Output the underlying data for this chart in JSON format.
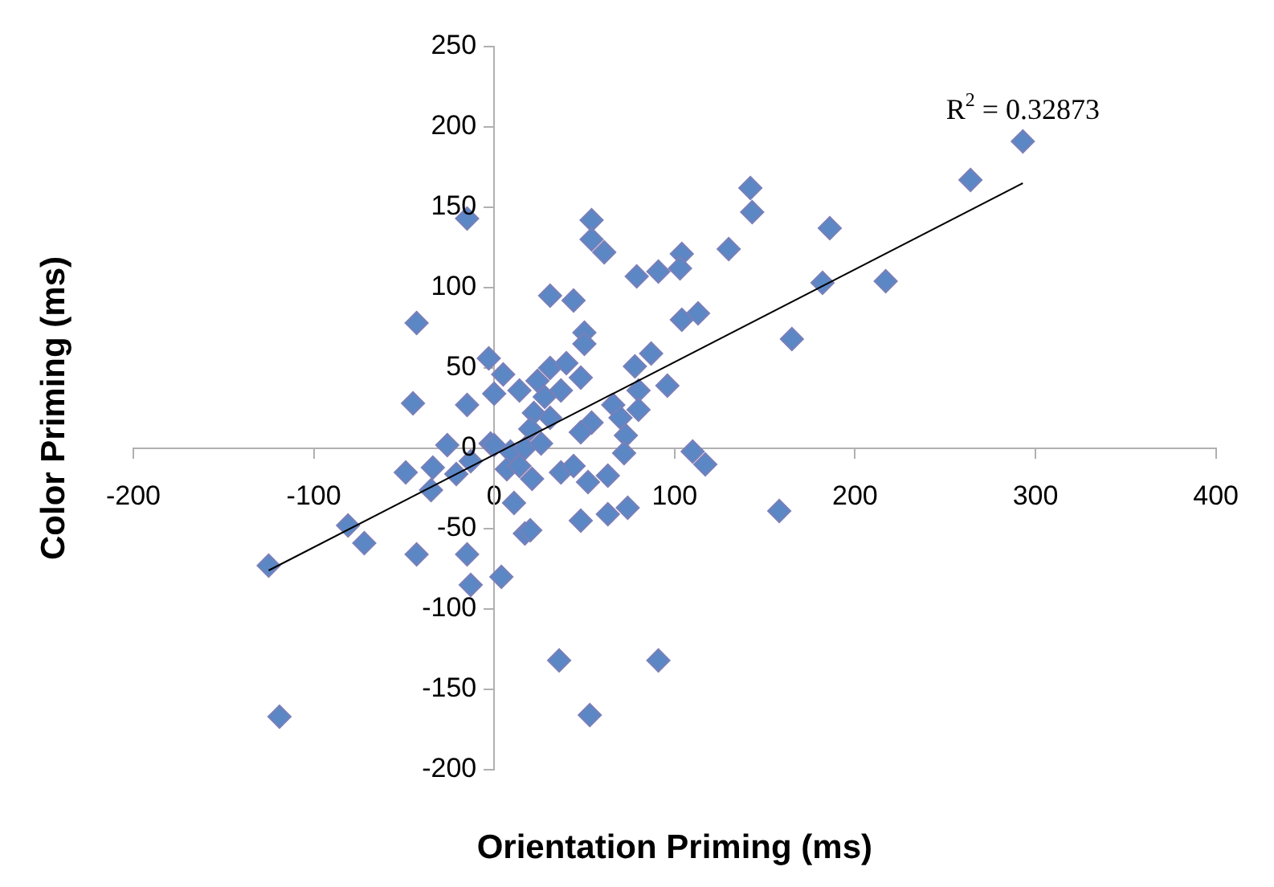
{
  "chart_data": {
    "type": "scatter",
    "xlabel": "Orientation Priming (ms)",
    "ylabel": "Color Priming (ms)",
    "annotations": [
      {
        "text": "R$^{2}$ = 0.32873",
        "x": 293,
        "y": 165
      }
    ],
    "xlim": [
      -200,
      400
    ],
    "ylim": [
      -200,
      250
    ],
    "xticks": [
      -200,
      -100,
      0,
      100,
      200,
      300,
      400
    ],
    "yticks": [
      -200,
      -150,
      -100,
      -50,
      0,
      50,
      100,
      150,
      200,
      250
    ],
    "series": [
      {
        "type": "scatter",
        "marker": "diamond",
        "color": "#5b87c5",
        "x": [
          -15,
          -43,
          -3,
          5,
          0,
          -45,
          -15,
          -26,
          -49,
          -34,
          -21,
          -13,
          -35,
          -2,
          11,
          -81,
          -72,
          -125,
          -43,
          -15,
          -13,
          4,
          -119,
          17,
          142,
          143,
          54,
          54,
          61,
          130,
          79,
          91,
          104,
          103,
          31,
          44,
          104,
          113,
          50,
          50,
          78,
          87,
          96,
          14,
          24,
          31,
          40,
          48,
          37,
          28,
          80,
          80,
          66,
          70,
          22,
          31,
          54,
          48,
          73,
          20,
          0,
          9,
          17,
          26,
          72,
          7,
          14,
          21,
          37,
          44,
          52,
          63,
          110,
          117,
          20,
          48,
          63,
          74,
          158,
          91,
          36,
          53,
          293,
          264,
          186,
          182,
          217,
          165
        ],
        "values": [
          143,
          78,
          56,
          46,
          34,
          28,
          27,
          2,
          -15,
          -12,
          -16,
          -8,
          -26,
          3,
          -34,
          -48,
          -59,
          -73,
          -66,
          -66,
          -85,
          -80,
          -167,
          -53,
          162,
          147,
          142,
          130,
          122,
          124,
          107,
          110,
          121,
          112,
          95,
          92,
          80,
          84,
          72,
          65,
          51,
          59,
          39,
          36,
          42,
          50,
          53,
          44,
          36,
          32,
          36,
          24,
          27,
          19,
          22,
          19,
          16,
          10,
          8,
          12,
          2,
          -2,
          0,
          3,
          -3,
          -13,
          -11,
          -19,
          -15,
          -11,
          -21,
          -17,
          -2,
          -10,
          -51,
          -45,
          -41,
          -37,
          -39,
          -132,
          -132,
          -166,
          191,
          167,
          137,
          103,
          104,
          68
        ]
      },
      {
        "type": "line",
        "color": "#000000",
        "x": [
          -125,
          293
        ],
        "values": [
          -76,
          165
        ]
      }
    ]
  }
}
